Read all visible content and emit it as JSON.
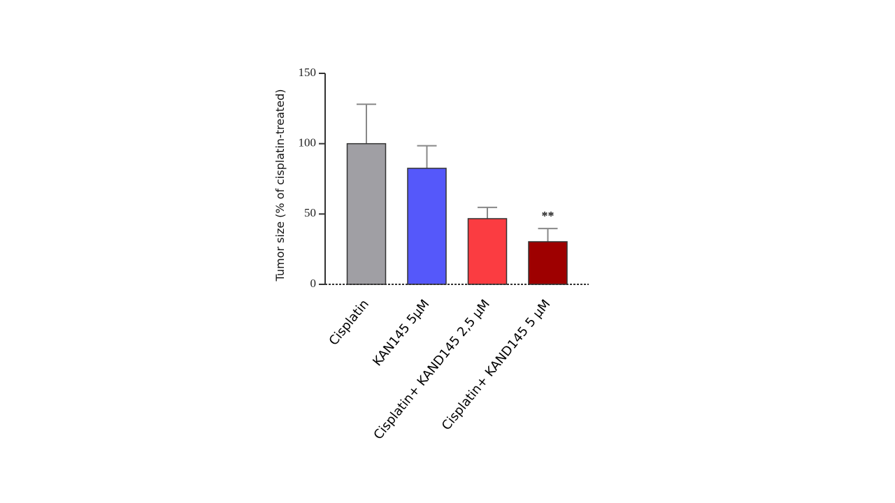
{
  "chart_data": {
    "type": "bar",
    "y_label": "Tumor size (% of cisplatin-treated)",
    "categories": [
      "Cisplatin",
      "KAN145 5µM",
      "Cisplatin+ KAND145 2,5 µM",
      "Cisplatin+ KAND145 5 µM"
    ],
    "values": [
      100,
      82.5,
      46.7,
      30.3
    ],
    "errors": [
      28,
      16,
      8,
      9.4
    ],
    "colors": [
      "#a09fa4",
      "#5558fa",
      "#fb3c41",
      "#9e0000"
    ],
    "annotation": "**",
    "ylim": [
      0,
      150
    ],
    "yticks": [
      0,
      50,
      100,
      150
    ]
  }
}
